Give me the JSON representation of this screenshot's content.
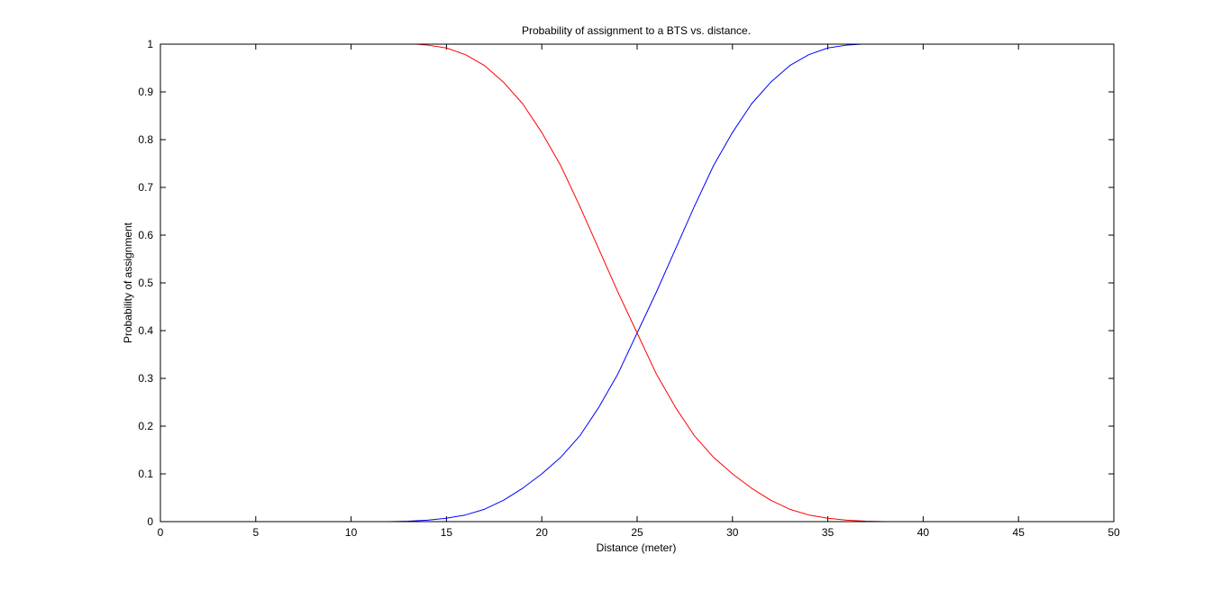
{
  "chart_data": {
    "type": "line",
    "title": "Probability of assignment to a BTS vs. distance.",
    "xlabel": "Distance (meter)",
    "ylabel": "Probability of assignment",
    "xlim": [
      0,
      50
    ],
    "ylim": [
      0,
      1
    ],
    "xticks": [
      0,
      5,
      10,
      15,
      20,
      25,
      30,
      35,
      40,
      45,
      50
    ],
    "yticks": [
      0,
      0.1,
      0.2,
      0.3,
      0.4,
      0.5,
      0.6,
      0.7,
      0.8,
      0.9,
      1
    ],
    "xtick_labels": [
      "0",
      "5",
      "10",
      "15",
      "20",
      "25",
      "30",
      "35",
      "40",
      "45",
      "50"
    ],
    "ytick_labels": [
      "0",
      "0.1",
      "0.2",
      "0.3",
      "0.4",
      "0.5",
      "0.6",
      "0.7",
      "0.8",
      "0.9",
      "1"
    ],
    "grid": false,
    "series": [
      {
        "color": "#0000ff",
        "x": [
          4,
          6,
          8,
          10,
          12,
          13,
          14,
          15,
          16,
          17,
          18,
          19,
          20,
          21,
          22,
          23,
          24,
          25,
          26,
          27,
          28,
          29,
          30,
          31,
          32,
          33,
          34,
          35,
          36,
          36.8
        ],
        "y": [
          0.0,
          0.0,
          0.0,
          0.0,
          0.0,
          0.001,
          0.003,
          0.007,
          0.014,
          0.026,
          0.045,
          0.07,
          0.1,
          0.135,
          0.18,
          0.24,
          0.31,
          0.395,
          0.48,
          0.57,
          0.66,
          0.745,
          0.815,
          0.875,
          0.92,
          0.955,
          0.978,
          0.992,
          0.998,
          1.0
        ]
      },
      {
        "color": "#ff0000",
        "x": [
          13.4,
          14,
          15,
          16,
          17,
          18,
          19,
          20,
          21,
          22,
          23,
          24,
          25,
          26,
          27,
          28,
          29,
          30,
          31,
          32,
          33,
          34,
          35,
          36,
          37,
          38,
          40,
          42,
          44,
          46.2
        ],
        "y": [
          1.0,
          0.998,
          0.992,
          0.978,
          0.955,
          0.92,
          0.875,
          0.815,
          0.745,
          0.66,
          0.57,
          0.48,
          0.395,
          0.31,
          0.24,
          0.18,
          0.135,
          0.1,
          0.07,
          0.045,
          0.026,
          0.014,
          0.007,
          0.003,
          0.001,
          0.0,
          0.0,
          0.0,
          0.0,
          0.0
        ]
      }
    ]
  }
}
